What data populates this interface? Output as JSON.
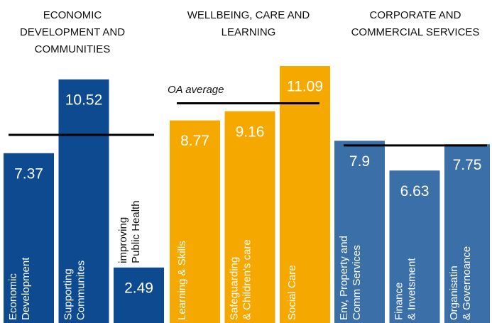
{
  "chart_data": {
    "type": "bar",
    "annotation": "OA average",
    "series": [
      {
        "name": [
          "ECONOMIC",
          "DEVELOPMENT AND",
          "COMMUNITIES"
        ],
        "color": "#0d4a8f",
        "label_color": "#ffffff",
        "categories": [
          [
            "Economic",
            "Development"
          ],
          [
            "Supporting",
            "Communites"
          ],
          [
            "improving",
            "Public Health"
          ]
        ],
        "values": [
          7.37,
          10.52,
          2.49
        ],
        "average": 8.15
      },
      {
        "name": [
          "WELLBEING, CARE AND",
          "LEARNING"
        ],
        "color": "#f5a800",
        "label_color": "#ffffff",
        "categories": [
          [
            "Learning & Skills"
          ],
          [
            "Safeguarding",
            "& Children's care"
          ],
          [
            "Social Care"
          ]
        ],
        "values": [
          8.77,
          9.16,
          11.09
        ],
        "average": 9.5
      },
      {
        "name": [
          "CORPORATE AND",
          "COMMERCIAL SERVICES"
        ],
        "color": "#3a6fa8",
        "label_color": "#ffffff",
        "categories": [
          [
            "Env, Property and",
            "Comm Services"
          ],
          [
            "Finance",
            "& Invetsment"
          ],
          [
            "Organisatin",
            "& Governoance"
          ]
        ],
        "values": [
          7.9,
          6.63,
          7.75
        ],
        "average": 7.7
      }
    ]
  }
}
